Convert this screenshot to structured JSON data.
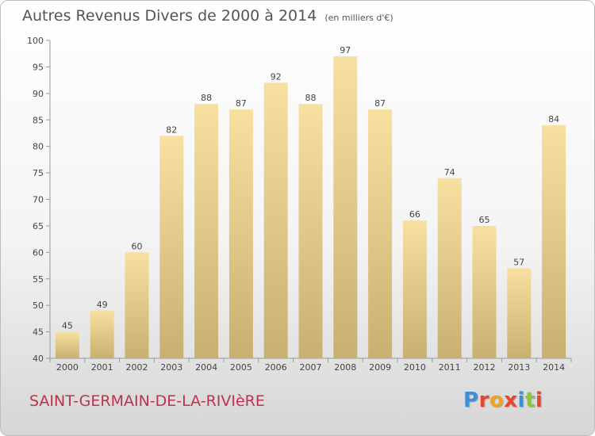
{
  "header": {
    "title": "Autres Revenus Divers de 2000 à 2014",
    "unit": "(en milliers d'€)"
  },
  "footer": {
    "commune": "SAINT-GERMAIN-DE-LA-RIVIèRE",
    "commune_color": "#c0324a",
    "logo": "Proxiti",
    "logo_colors": [
      "#3a8fd8",
      "#e8452b",
      "#f0a320",
      "#e8452b",
      "#3a8fd8",
      "#8cc63e",
      "#e8452b"
    ]
  },
  "chart_data": {
    "type": "bar",
    "categories": [
      "2000",
      "2001",
      "2002",
      "2003",
      "2004",
      "2005",
      "2006",
      "2007",
      "2008",
      "2009",
      "2010",
      "2011",
      "2012",
      "2013",
      "2014"
    ],
    "values": [
      45,
      49,
      60,
      82,
      88,
      87,
      92,
      88,
      97,
      87,
      66,
      74,
      65,
      57,
      84
    ],
    "ylim": [
      40,
      100
    ],
    "yticks": [
      40,
      45,
      50,
      55,
      60,
      65,
      70,
      75,
      80,
      85,
      90,
      95,
      100
    ],
    "grid": false,
    "bar_color_top": "#f7e0a0",
    "bar_color_bottom": "#c8b070"
  }
}
